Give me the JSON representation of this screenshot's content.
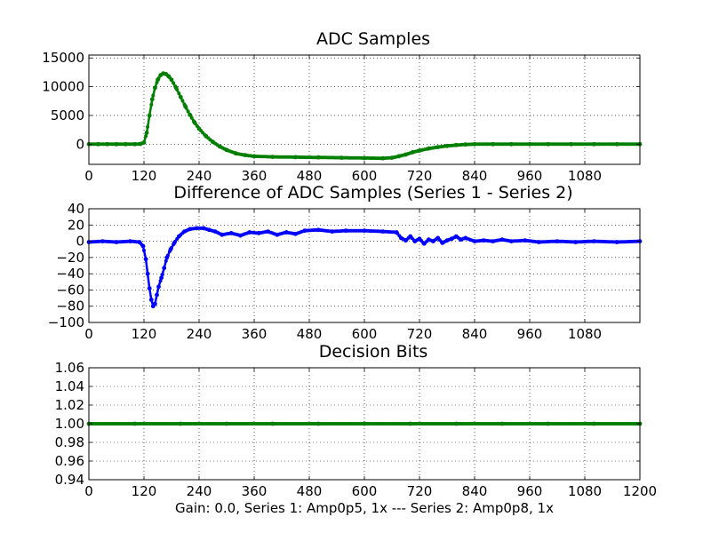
{
  "figure": {
    "footer": "Gain: 0.0, Series 1: Amp0p5, 1x --- Series 2: Amp0p8, 1x"
  },
  "chart_data": [
    {
      "type": "scatter",
      "title": "ADC Samples",
      "xlabel": "",
      "ylabel": "",
      "xlim": [
        0,
        1200
      ],
      "ylim": [
        -3500,
        15500
      ],
      "xticks": [
        0,
        120,
        240,
        360,
        480,
        600,
        720,
        840,
        960,
        1080
      ],
      "xtick_labels": [
        "0",
        "120",
        "240",
        "360",
        "480",
        "600",
        "720",
        "840",
        "960",
        "1080"
      ],
      "yticks": [
        0,
        5000,
        10000,
        15000
      ],
      "ytick_labels": [
        "0",
        "5000",
        "10000",
        "15000"
      ],
      "grid": true,
      "series": [
        {
          "name": "ADC samples",
          "color": "#007f00",
          "x": [
            0,
            20,
            40,
            60,
            80,
            100,
            112,
            120,
            126,
            132,
            138,
            144,
            150,
            156,
            162,
            168,
            174,
            180,
            190,
            200,
            210,
            220,
            230,
            240,
            255,
            270,
            285,
            300,
            320,
            340,
            360,
            400,
            450,
            500,
            550,
            600,
            640,
            660,
            675,
            690,
            705,
            720,
            740,
            760,
            780,
            800,
            820,
            840,
            880,
            920,
            960,
            1000,
            1050,
            1100,
            1150,
            1200
          ],
          "y": [
            0,
            0,
            0,
            0,
            0,
            0,
            50,
            300,
            2000,
            5000,
            7800,
            9800,
            11200,
            12000,
            12300,
            12200,
            11800,
            11200,
            9800,
            8200,
            6600,
            5100,
            3800,
            2700,
            1400,
            400,
            -400,
            -1000,
            -1600,
            -1900,
            -2100,
            -2200,
            -2250,
            -2300,
            -2350,
            -2400,
            -2450,
            -2350,
            -2100,
            -1800,
            -1400,
            -1100,
            -750,
            -500,
            -300,
            -150,
            -50,
            0,
            0,
            0,
            0,
            0,
            0,
            0,
            0,
            0
          ]
        }
      ]
    },
    {
      "type": "scatter",
      "title": "Difference of ADC Samples (Series 1 - Series 2)",
      "xlabel": "",
      "ylabel": "",
      "xlim": [
        0,
        1200
      ],
      "ylim": [
        -100,
        40
      ],
      "xticks": [
        0,
        120,
        240,
        360,
        480,
        600,
        720,
        840,
        960,
        1080
      ],
      "xtick_labels": [
        "0",
        "120",
        "240",
        "360",
        "480",
        "600",
        "720",
        "840",
        "960",
        "1080"
      ],
      "yticks": [
        -100,
        -80,
        -60,
        -40,
        -20,
        0,
        20,
        40
      ],
      "ytick_labels": [
        "−100",
        "−80",
        "−60",
        "−40",
        "−20",
        "0",
        "20",
        "40"
      ],
      "grid": true,
      "series": [
        {
          "name": "Difference",
          "color": "#0000ff",
          "x": [
            0,
            30,
            60,
            90,
            110,
            118,
            124,
            128,
            132,
            136,
            140,
            144,
            148,
            152,
            158,
            164,
            170,
            178,
            186,
            196,
            208,
            220,
            235,
            250,
            262,
            275,
            290,
            310,
            330,
            350,
            370,
            390,
            410,
            430,
            450,
            470,
            500,
            530,
            560,
            600,
            640,
            670,
            680,
            690,
            700,
            710,
            720,
            730,
            740,
            750,
            760,
            770,
            780,
            790,
            800,
            810,
            820,
            840,
            860,
            880,
            900,
            920,
            950,
            980,
            1020,
            1060,
            1100,
            1150,
            1200
          ],
          "y": [
            -1,
            0,
            -1,
            0,
            -1,
            -6,
            -22,
            -40,
            -58,
            -72,
            -80,
            -77,
            -66,
            -56,
            -45,
            -33,
            -20,
            -10,
            -2,
            6,
            12,
            15,
            16,
            16,
            14,
            12,
            8,
            10,
            7,
            11,
            10,
            12,
            8,
            11,
            9,
            13,
            14,
            12,
            13,
            13,
            12,
            11,
            4,
            1,
            6,
            0,
            3,
            -3,
            2,
            0,
            4,
            -2,
            1,
            3,
            6,
            2,
            4,
            0,
            1,
            0,
            2,
            0,
            1,
            -1,
            0,
            -1,
            0,
            -1,
            0
          ]
        }
      ]
    },
    {
      "type": "scatter",
      "title": "Decision Bits",
      "xlabel": "Gain: 0.0, Series 1: Amp0p5, 1x --- Series 2: Amp0p8, 1x",
      "ylabel": "",
      "xlim": [
        0,
        1200
      ],
      "ylim": [
        0.94,
        1.06
      ],
      "xticks": [
        0,
        120,
        240,
        360,
        480,
        600,
        720,
        840,
        960,
        1080,
        1200
      ],
      "xtick_labels": [
        "0",
        "120",
        "240",
        "360",
        "480",
        "600",
        "720",
        "840",
        "960",
        "1080",
        "1200"
      ],
      "yticks": [
        0.94,
        0.96,
        0.98,
        1.0,
        1.02,
        1.04,
        1.06
      ],
      "ytick_labels": [
        "0.94",
        "0.96",
        "0.98",
        "1.00",
        "1.02",
        "1.04",
        "1.06"
      ],
      "grid": true,
      "series": [
        {
          "name": "Decision bits",
          "color": "#007f00",
          "x": [
            0,
            100,
            200,
            300,
            400,
            500,
            600,
            700,
            800,
            900,
            1000,
            1100,
            1200
          ],
          "y": [
            1,
            1,
            1,
            1,
            1,
            1,
            1,
            1,
            1,
            1,
            1,
            1,
            1
          ]
        }
      ]
    }
  ]
}
